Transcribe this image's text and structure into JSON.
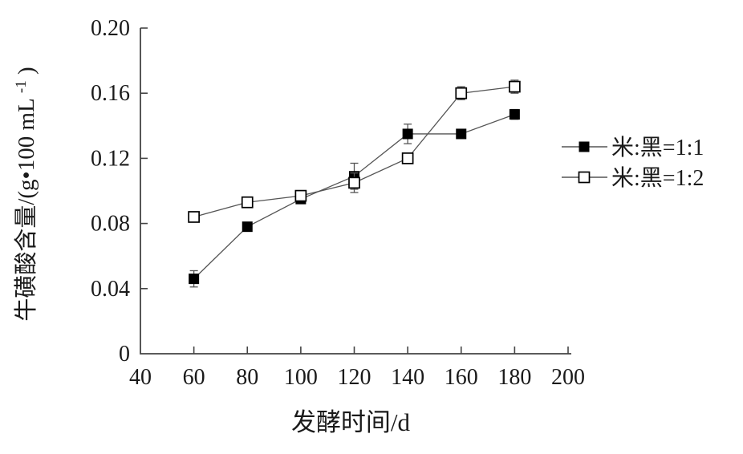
{
  "figure": {
    "background": "#ffffff",
    "text_color": "#1a1a1a",
    "axis_color": "#444444",
    "line_color": "#555555",
    "marker_color": "#000000"
  },
  "chart_data": {
    "type": "line",
    "title": "",
    "xlabel": "发酵时间/d",
    "ylabel": "牛磺酸含量/(g•100 mL⁻¹)",
    "ylabel_parts": {
      "prefix": "牛磺酸含量/(g•100 mL",
      "sup": "-1",
      "suffix": ")"
    },
    "x": [
      60,
      80,
      100,
      120,
      140,
      160,
      180
    ],
    "xlim": [
      40,
      200
    ],
    "ylim": [
      0,
      0.2
    ],
    "x_ticks": [
      40,
      60,
      80,
      100,
      120,
      140,
      160,
      180,
      200
    ],
    "x_tick_labels": [
      "40",
      "60",
      "80",
      "100",
      "120",
      "140",
      "160",
      "180",
      "200"
    ],
    "y_ticks": [
      0,
      0.04,
      0.08,
      0.12,
      0.16,
      0.2
    ],
    "y_tick_labels": [
      "0",
      "0.04",
      "0.08",
      "0.12",
      "0.16",
      "0.20"
    ],
    "grid": false,
    "legend_position": "right-outside",
    "series": [
      {
        "name": "米:黑=1:1",
        "marker": "filled-square",
        "color": "#000000",
        "values": [
          0.046,
          0.078,
          0.095,
          0.109,
          0.135,
          0.135,
          0.147
        ],
        "errors": [
          0.005,
          0,
          0,
          0.008,
          0.006,
          0,
          0.003
        ]
      },
      {
        "name": "米:黑=1:2",
        "marker": "open-square",
        "color": "#000000",
        "values": [
          0.084,
          0.093,
          0.097,
          0.105,
          0.12,
          0.16,
          0.164
        ],
        "errors": [
          0,
          0,
          0,
          0.006,
          0,
          0.004,
          0.004
        ]
      }
    ]
  }
}
